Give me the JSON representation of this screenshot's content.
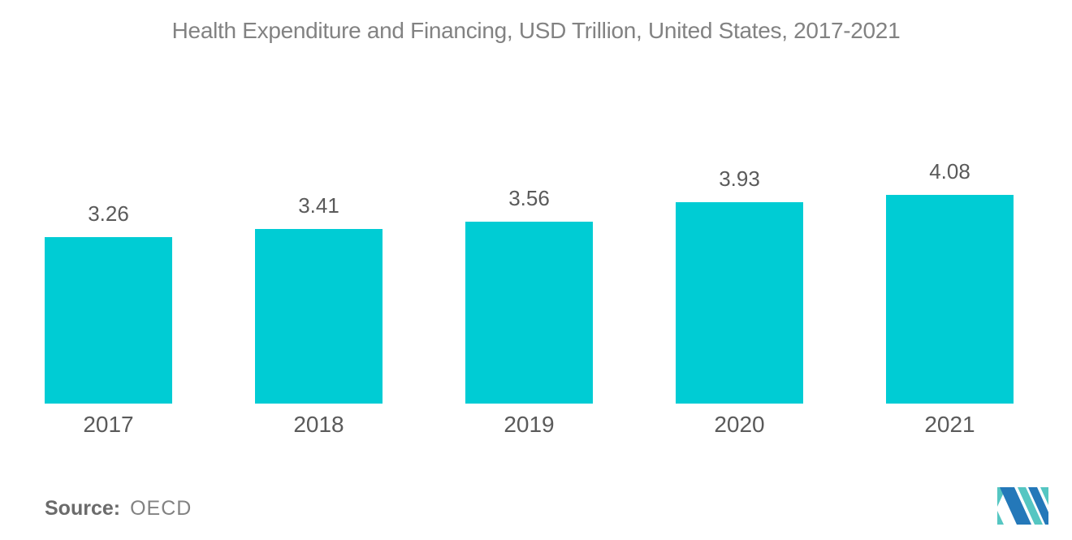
{
  "title": "Health Expenditure and Financing, USD Trillion, United States, 2017-2021",
  "source": {
    "label": "Source:",
    "value": "OECD"
  },
  "footer_icons": [
    {
      "name": "mordor-intelligence-logo"
    }
  ],
  "colors": {
    "bar": "#00ccd4",
    "text_title": "#828282",
    "text_label": "#5a5a5a",
    "text_source": "#6b6b6b",
    "logo_blue": "#2478b9",
    "logo_teal": "#55c6c2"
  },
  "chart_data": {
    "type": "bar",
    "categories": [
      "2017",
      "2018",
      "2019",
      "2020",
      "2021"
    ],
    "values": [
      3.26,
      3.41,
      3.56,
      3.93,
      4.08
    ],
    "title": "Health Expenditure and Financing, USD Trillion, United States, 2017-2021",
    "xlabel": "",
    "ylabel": "",
    "ylim": [
      0,
      4.08
    ],
    "grid": false,
    "legend": false,
    "axes_visible": false,
    "value_labels_shown": true,
    "bar_color": "#00ccd4"
  }
}
